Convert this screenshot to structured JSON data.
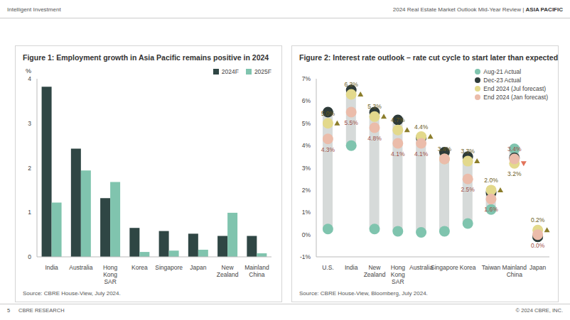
{
  "page": {
    "header_left": "Intelligent Investment",
    "header_right": "2024 Real Estate Market Outlook Mid-Year Review |",
    "header_section": "ASIA PACIFIC",
    "page_number": "5",
    "footer_left": "CBRE RESEARCH",
    "footer_right": "© 2024 CBRE, INC."
  },
  "chart_data": [
    {
      "type": "bar",
      "title": "Figure 1: Employment growth in Asia Pacific remains positive in 2024",
      "y_label": "%",
      "source": "Source: CBRE House-View, July 2024.",
      "categories": [
        "India",
        "Australia",
        "Hong Kong SAR",
        "Korea",
        "Singapore",
        "Japan",
        "New Zealand",
        "Mainland China"
      ],
      "series": [
        {
          "name": "2024F",
          "color": "#2f4644",
          "values": [
            3.82,
            2.43,
            1.32,
            0.65,
            0.58,
            0.52,
            0.47,
            0.47
          ]
        },
        {
          "name": "2025F",
          "color": "#80c4ae",
          "values": [
            1.22,
            1.94,
            1.68,
            0.11,
            0.14,
            0.16,
            0.99,
            0.08
          ]
        }
      ],
      "ylim": [
        0,
        4
      ],
      "yticks": [
        0,
        1,
        2,
        3,
        4
      ],
      "grid": false,
      "legend": "top-right"
    },
    {
      "type": "dot",
      "title": "Figure 2: Interest rate outlook – rate cut cycle to start later than expected",
      "source": "Source: CBRE House-View, Bloomberg, July 2024.",
      "categories": [
        "U.S.",
        "India",
        "New Zealand",
        "Hong Kong SAR",
        "Australia",
        "Singapore",
        "Korea",
        "Taiwan",
        "Mainland China",
        "Japan"
      ],
      "series": [
        {
          "name": "Aug-21 Actual",
          "color": "#7fc4ae",
          "marker": "circle",
          "values": [
            0.25,
            4.0,
            0.25,
            0.15,
            0.1,
            0.15,
            0.5,
            1.13,
            3.85,
            -0.1
          ]
        },
        {
          "name": "Dec-23 Actual",
          "color": "#2e3b39",
          "marker": "circle",
          "values": [
            5.5,
            6.5,
            5.5,
            5.15,
            4.35,
            3.7,
            3.5,
            1.88,
            3.45,
            -0.1
          ]
        },
        {
          "name": "End 2024 (Jul forecast)",
          "color": "#e3d98c",
          "marker": "circle",
          "data_labels": true,
          "values": [
            5.0,
            6.3,
            5.3,
            4.7,
            4.4,
            3.4,
            3.3,
            2.0,
            3.2,
            0.2
          ],
          "value_labels": [
            "5.0%",
            "6.3%",
            "5.3%",
            "4.7%",
            "4.4%",
            "3.4%",
            "3.3%",
            "2.0%",
            "3.2%",
            "0.2%"
          ]
        },
        {
          "name": "End 2024 (Jan forecast)",
          "color": "#ebbcaa",
          "marker": "circle",
          "data_labels": true,
          "values": [
            4.3,
            5.5,
            4.8,
            4.1,
            4.1,
            3.4,
            2.5,
            1.6,
            3.4,
            0.0
          ],
          "value_labels": [
            "4.3%",
            "5.5%",
            "4.8%",
            "4.1%",
            "4.1%",
            null,
            "2.5%",
            "1.6%",
            "3.4%",
            "0.0%"
          ]
        }
      ],
      "ylim": [
        -1,
        7
      ],
      "yticks": [
        {
          "value": -1,
          "label": "-1%"
        },
        {
          "value": 0,
          "label": "0%"
        },
        {
          "value": 1,
          "label": "1%"
        },
        {
          "value": 2,
          "label": "2%"
        },
        {
          "value": 3,
          "label": "3%"
        },
        {
          "value": 4,
          "label": "4%"
        },
        {
          "value": 5,
          "label": "5%"
        },
        {
          "value": 6,
          "label": "6%"
        },
        {
          "value": 7,
          "label": "7%"
        }
      ],
      "grid": false,
      "legend": "top-right"
    }
  ]
}
